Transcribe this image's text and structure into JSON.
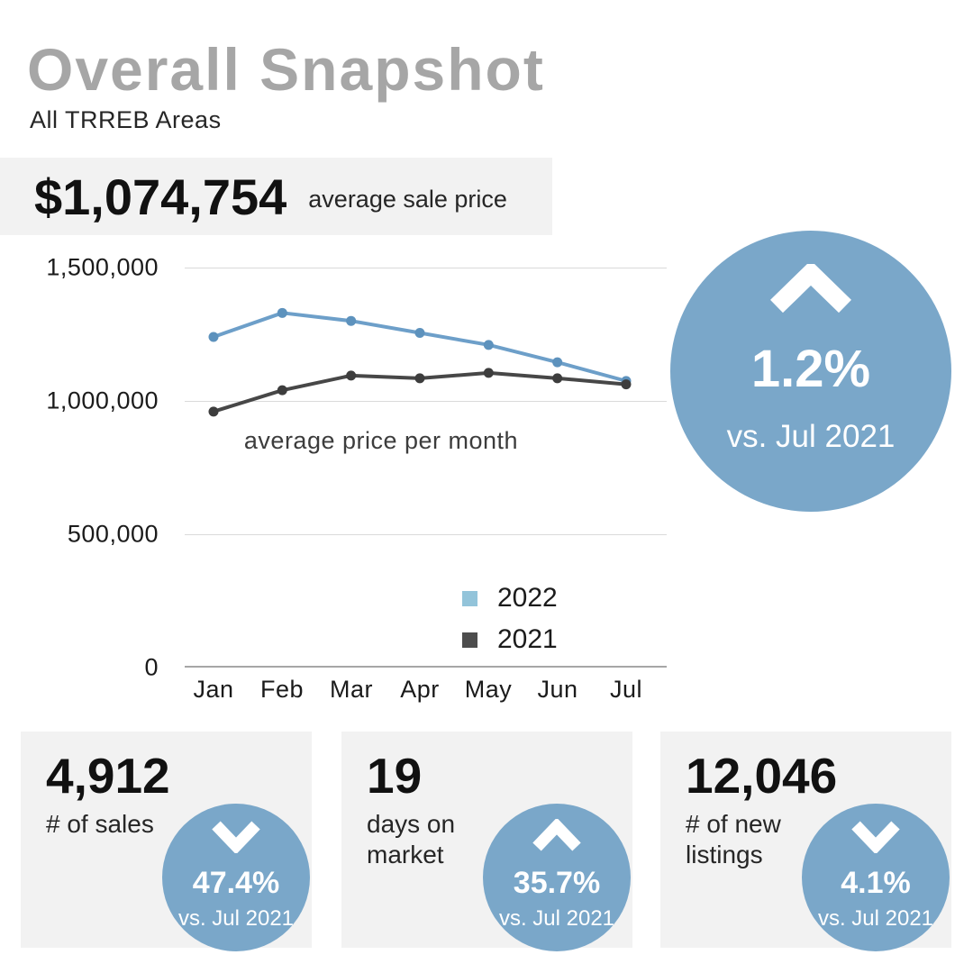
{
  "header": {
    "title": "Overall Snapshot",
    "subtitle": "All TRREB Areas"
  },
  "price_banner": {
    "value": "$1,074,754",
    "label": "average sale price"
  },
  "chart_data": {
    "type": "line",
    "title": "average price per month",
    "categories": [
      "Jan",
      "Feb",
      "Mar",
      "Apr",
      "May",
      "Jun",
      "Jul"
    ],
    "series": [
      {
        "name": "2022",
        "values": [
          1240000,
          1330000,
          1300000,
          1255000,
          1210000,
          1145000,
          1074754
        ],
        "line_color": "#6d9fc9",
        "dot_color": "#5d92bd",
        "swatch_color": "#93c4da"
      },
      {
        "name": "2021",
        "values": [
          960000,
          1040000,
          1095000,
          1085000,
          1105000,
          1085000,
          1062000
        ],
        "line_color": "#474747",
        "dot_color": "#3d3d3d",
        "swatch_color": "#4d4d4d"
      }
    ],
    "ylim": [
      0,
      1500000
    ],
    "yticks": [
      {
        "value": 1500000,
        "label": "1,500,000"
      },
      {
        "value": 1000000,
        "label": "1,000,000"
      },
      {
        "value": 500000,
        "label": "500,000"
      },
      {
        "value": 0,
        "label": "0"
      }
    ],
    "grid": true,
    "legend_position": "inside-bottom-right"
  },
  "highlight": {
    "direction": "up",
    "value": "1.2%",
    "compare": "vs. Jul 2021"
  },
  "cards": [
    {
      "value": "4,912",
      "label": "# of sales",
      "direction": "down",
      "pct": "47.4%",
      "compare": "vs. Jul 2021"
    },
    {
      "value": "19",
      "label": "days on market",
      "direction": "up",
      "pct": "35.7%",
      "compare": "vs. Jul 2021"
    },
    {
      "value": "12,046",
      "label": "# of new listings",
      "direction": "down",
      "pct": "4.1%",
      "compare": "vs. Jul 2021"
    }
  ],
  "colors": {
    "accent_blue": "#7aa7c9",
    "panel_gray": "#f2f2f2",
    "title_gray": "#a6a6a6",
    "gridline": "#dadada",
    "axis": "#a6a6a6"
  }
}
